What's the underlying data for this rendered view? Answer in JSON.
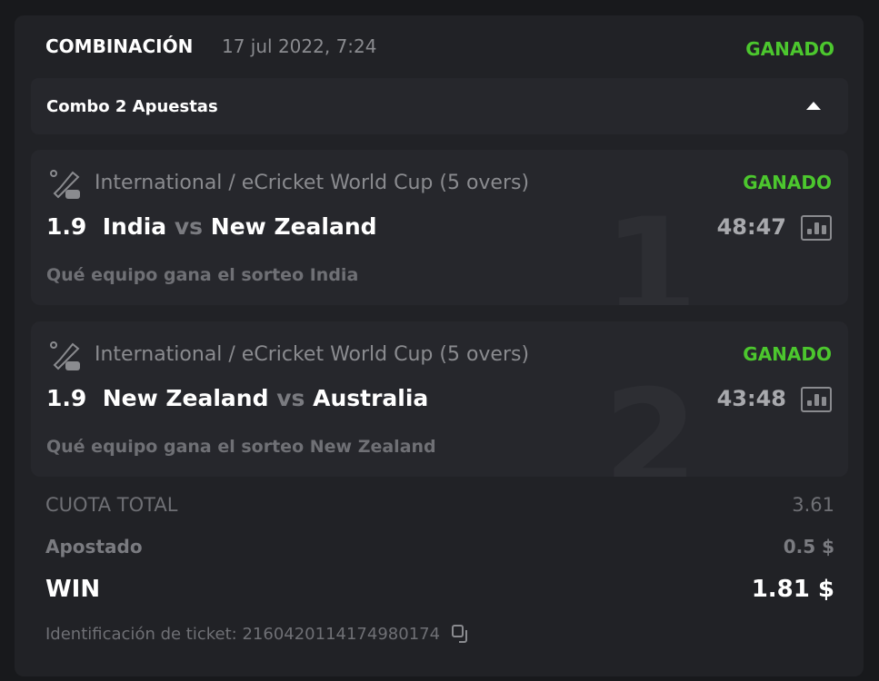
{
  "header": {
    "title": "COMBINACIÓN",
    "datetime": "17 jul 2022, 7:24",
    "status": "GANADO"
  },
  "combo": {
    "label": "Combo 2 Apuestas",
    "toggle_icon": "triangle-up-icon"
  },
  "bets": [
    {
      "index": "1",
      "league": "International / eCricket World Cup (5 overs)",
      "status": "GANADO",
      "odds": "1.9",
      "team1": "India",
      "vs": "vs",
      "team2": "New Zealand",
      "score": "48:47",
      "market": "Qué equipo gana el sorteo India"
    },
    {
      "index": "2",
      "league": "International / eCricket World Cup (5 overs)",
      "status": "GANADO",
      "odds": "1.9",
      "team1": "New Zealand",
      "vs": "vs",
      "team2": "Australia",
      "score": "43:48",
      "market": "Qué equipo gana el sorteo New Zealand"
    }
  ],
  "summary": {
    "total_odds_label": "CUOTA TOTAL",
    "total_odds": "3.61",
    "stake_label": "Apostado",
    "stake": "0.5 $",
    "win_label": "WIN",
    "win": "1.81 $",
    "ticket_label": "Identificación de ticket: 2160420114174980174"
  },
  "colors": {
    "win_green": "#4cc72e",
    "card_bg": "#212226",
    "bet_bg": "#26272c"
  }
}
